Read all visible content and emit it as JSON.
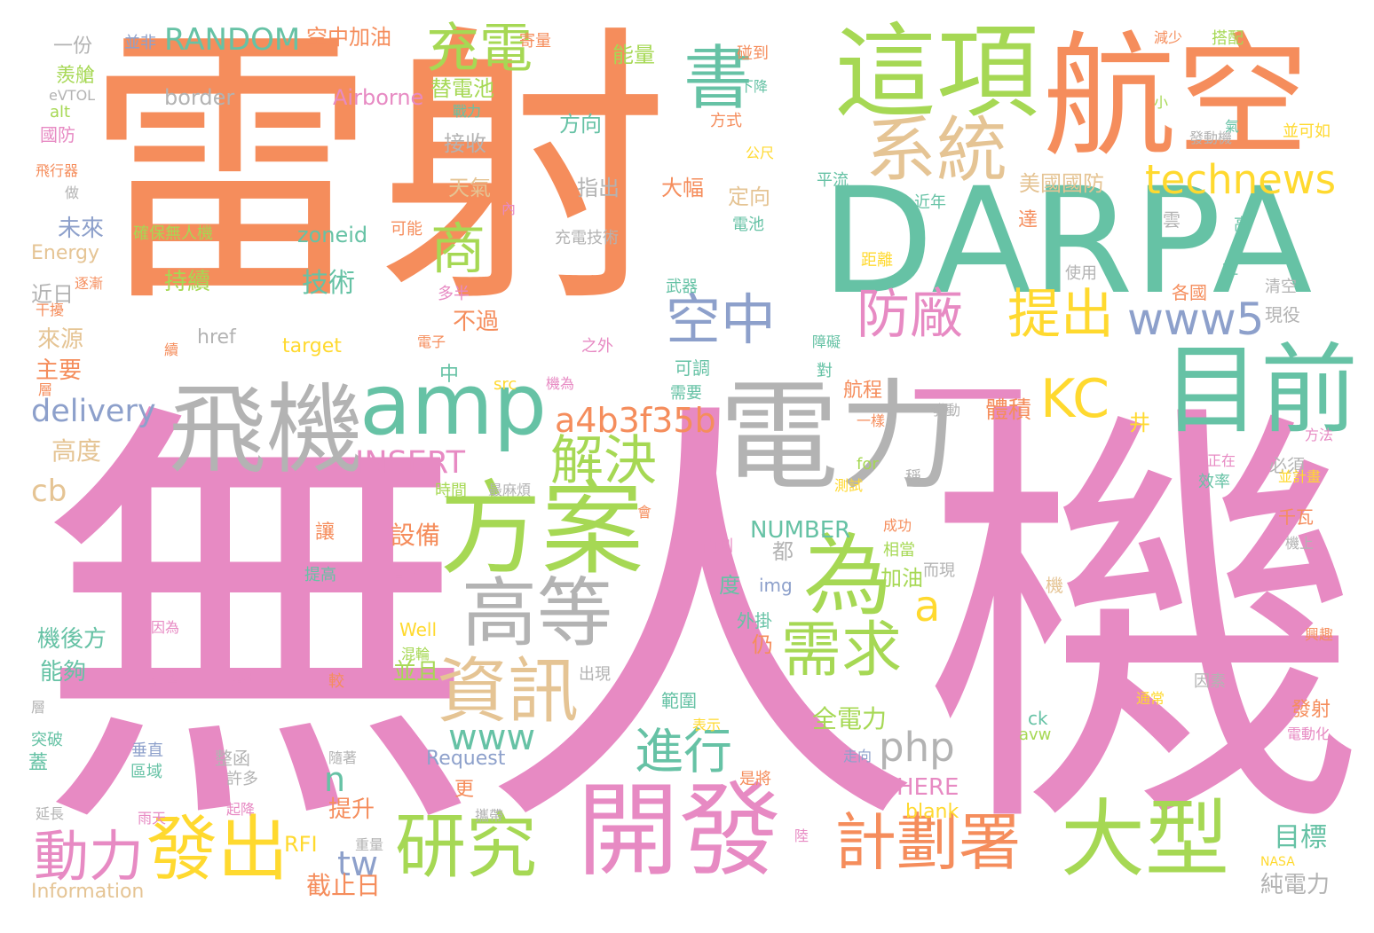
{
  "colors": {
    "background": "#ffffff",
    "orange": "#f58d5c",
    "pink": "#e78ac3",
    "green": "#66c2a5",
    "lime": "#a6d854",
    "gray": "#b3b3b3",
    "blue": "#8da0cb",
    "yellow": "#ffd92f",
    "tan": "#e5c494"
  },
  "words": [
    {
      "text": "雷射",
      "color": "orange"
    },
    {
      "text": "無人機",
      "color": "pink"
    },
    {
      "text": "航空",
      "color": "orange"
    },
    {
      "text": "DARPA",
      "color": "green"
    },
    {
      "text": "這項",
      "color": "lime"
    },
    {
      "text": "一",
      "color": "pink"
    },
    {
      "text": "電力",
      "color": "gray"
    },
    {
      "text": "目前",
      "color": "green"
    },
    {
      "text": "飛機",
      "color": "gray"
    },
    {
      "text": "amp",
      "color": "green"
    },
    {
      "text": "方案",
      "color": "lime"
    },
    {
      "text": "開發",
      "color": "pink"
    },
    {
      "text": "為",
      "color": "lime"
    },
    {
      "text": "系統",
      "color": "tan"
    },
    {
      "text": "書",
      "color": "green"
    },
    {
      "text": "充電",
      "color": "lime"
    },
    {
      "text": "technews",
      "color": "yellow"
    },
    {
      "text": "商",
      "color": "lime"
    },
    {
      "text": "空中",
      "color": "blue"
    },
    {
      "text": "防廠",
      "color": "pink"
    },
    {
      "text": "提出",
      "color": "yellow"
    },
    {
      "text": "www5",
      "color": "blue"
    },
    {
      "text": "KC",
      "color": "yellow"
    },
    {
      "text": "高等",
      "color": "gray"
    },
    {
      "text": "資訊",
      "color": "tan"
    },
    {
      "text": "需求",
      "color": "lime"
    },
    {
      "text": "a",
      "color": "yellow"
    },
    {
      "text": "解決",
      "color": "lime"
    },
    {
      "text": "a4b3f35b",
      "color": "orange"
    },
    {
      "text": "大型",
      "color": "lime"
    },
    {
      "text": "計劃署",
      "color": "orange"
    },
    {
      "text": "研究",
      "color": "lime"
    },
    {
      "text": "發出",
      "color": "yellow"
    },
    {
      "text": "動力",
      "color": "pink"
    },
    {
      "text": "進行",
      "color": "green"
    },
    {
      "text": "www",
      "color": "green"
    },
    {
      "text": "php",
      "color": "gray"
    },
    {
      "text": "delivery",
      "color": "blue"
    },
    {
      "text": "INSERT",
      "color": "pink"
    },
    {
      "text": "RANDOM",
      "color": "green"
    },
    {
      "text": "空中加油",
      "color": "orange"
    },
    {
      "text": "border",
      "color": "gray"
    },
    {
      "text": "Airborne",
      "color": "pink"
    },
    {
      "text": "替電池",
      "color": "lime"
    },
    {
      "text": "接收",
      "color": "gray"
    },
    {
      "text": "天氣",
      "color": "tan"
    },
    {
      "text": "方向",
      "color": "green"
    },
    {
      "text": "指出",
      "color": "gray"
    },
    {
      "text": "大幅",
      "color": "orange"
    },
    {
      "text": "定向",
      "color": "tan"
    },
    {
      "text": "美國國防",
      "color": "tan"
    },
    {
      "text": "未來",
      "color": "blue"
    },
    {
      "text": "zoneid",
      "color": "green"
    },
    {
      "text": "持續",
      "color": "lime"
    },
    {
      "text": "技術",
      "color": "green"
    },
    {
      "text": "近日",
      "color": "gray"
    },
    {
      "text": "來源",
      "color": "tan"
    },
    {
      "text": "主要",
      "color": "orange"
    },
    {
      "text": "不過",
      "color": "orange"
    },
    {
      "text": "href",
      "color": "gray"
    },
    {
      "text": "target",
      "color": "yellow"
    },
    {
      "text": "Energy",
      "color": "tan"
    },
    {
      "text": "高度",
      "color": "tan"
    },
    {
      "text": "cb",
      "color": "tan"
    },
    {
      "text": "n",
      "color": "green"
    },
    {
      "text": "tw",
      "color": "blue"
    },
    {
      "text": "NUMBER",
      "color": "green"
    },
    {
      "text": "設備",
      "color": "orange"
    },
    {
      "text": "都",
      "color": "gray"
    },
    {
      "text": "體積",
      "color": "orange"
    },
    {
      "text": "航程",
      "color": "orange"
    },
    {
      "text": "全電力",
      "color": "lime"
    },
    {
      "text": "目標",
      "color": "green"
    },
    {
      "text": "純電力",
      "color": "gray"
    },
    {
      "text": "截止日",
      "color": "orange"
    },
    {
      "text": "RFI",
      "color": "yellow"
    },
    {
      "text": "Information",
      "color": "tan"
    },
    {
      "text": "Request",
      "color": "blue"
    },
    {
      "text": "HERE",
      "color": "pink"
    },
    {
      "text": "blank",
      "color": "yellow"
    },
    {
      "text": "機後方",
      "color": "green"
    },
    {
      "text": "能夠",
      "color": "green"
    },
    {
      "text": "並且",
      "color": "lime"
    },
    {
      "text": "提升",
      "color": "orange"
    },
    {
      "text": "蓋",
      "color": "green"
    },
    {
      "text": "一份",
      "color": "gray"
    },
    {
      "text": "並非",
      "color": "blue"
    },
    {
      "text": "羨艙",
      "color": "lime"
    },
    {
      "text": "eVTOL",
      "color": "gray"
    },
    {
      "text": "alt",
      "color": "lime"
    },
    {
      "text": "國防",
      "color": "pink"
    },
    {
      "text": "飛行器",
      "color": "orange"
    },
    {
      "text": "做",
      "color": "gray"
    },
    {
      "text": "能量",
      "color": "lime"
    },
    {
      "text": "碰到",
      "color": "orange"
    },
    {
      "text": "下降",
      "color": "green"
    },
    {
      "text": "方式",
      "color": "orange"
    },
    {
      "text": "減少",
      "color": "orange"
    },
    {
      "text": "搭配",
      "color": "lime"
    },
    {
      "text": "發動機",
      "color": "gray"
    },
    {
      "text": "並可如",
      "color": "yellow"
    },
    {
      "text": "氣",
      "color": "green"
    },
    {
      "text": "小",
      "color": "lime"
    },
    {
      "text": "戰力",
      "color": "green"
    },
    {
      "text": "公尺",
      "color": "yellow"
    },
    {
      "text": "平流",
      "color": "green"
    },
    {
      "text": "近年",
      "color": "green"
    },
    {
      "text": "電池",
      "color": "green"
    },
    {
      "text": "達",
      "color": "orange"
    },
    {
      "text": "雲",
      "color": "gray"
    },
    {
      "text": "高",
      "color": "green"
    },
    {
      "text": "充電技術",
      "color": "gray"
    },
    {
      "text": "可能",
      "color": "orange"
    },
    {
      "text": "確保無人機",
      "color": "lime"
    },
    {
      "text": "內",
      "color": "pink"
    },
    {
      "text": "距離",
      "color": "yellow"
    },
    {
      "text": "使用",
      "color": "gray"
    },
    {
      "text": "拉",
      "color": "green"
    },
    {
      "text": "清空",
      "color": "gray"
    },
    {
      "text": "現役",
      "color": "gray"
    },
    {
      "text": "各國",
      "color": "orange"
    },
    {
      "text": "武器",
      "color": "green"
    },
    {
      "text": "障礙",
      "color": "green"
    },
    {
      "text": "對",
      "color": "green"
    },
    {
      "text": "多半",
      "color": "pink"
    },
    {
      "text": "電子",
      "color": "orange"
    },
    {
      "text": "之外",
      "color": "pink"
    },
    {
      "text": "可調",
      "color": "green"
    },
    {
      "text": "需要",
      "color": "green"
    },
    {
      "text": "一樣",
      "color": "orange"
    },
    {
      "text": "發動",
      "color": "gray"
    },
    {
      "text": "井",
      "color": "yellow"
    },
    {
      "text": "方法",
      "color": "pink"
    },
    {
      "text": "必須",
      "color": "gray"
    },
    {
      "text": "正在",
      "color": "pink"
    },
    {
      "text": "效率",
      "color": "green"
    },
    {
      "text": "並計畫",
      "color": "yellow"
    },
    {
      "text": "千瓦",
      "color": "orange"
    },
    {
      "text": "機上",
      "color": "gray"
    },
    {
      "text": "成功",
      "color": "orange"
    },
    {
      "text": "相當",
      "color": "lime"
    },
    {
      "text": "加油",
      "color": "lime"
    },
    {
      "text": "而現",
      "color": "gray"
    },
    {
      "text": "稱",
      "color": "gray"
    },
    {
      "text": "測試",
      "color": "yellow"
    },
    {
      "text": "for",
      "color": "lime"
    },
    {
      "text": "會",
      "color": "orange"
    },
    {
      "text": "時間",
      "color": "lime"
    },
    {
      "text": "最麻煩",
      "color": "gray"
    },
    {
      "text": "偵測",
      "color": "pink"
    },
    {
      "text": "度",
      "color": "green"
    },
    {
      "text": "img",
      "color": "blue"
    },
    {
      "text": "外掛",
      "color": "green"
    },
    {
      "text": "仍",
      "color": "orange"
    },
    {
      "text": "機",
      "color": "tan"
    },
    {
      "text": "Well",
      "color": "yellow"
    },
    {
      "text": "混輪",
      "color": "lime"
    },
    {
      "text": "較",
      "color": "orange"
    },
    {
      "text": "出現",
      "color": "gray"
    },
    {
      "text": "範圍",
      "color": "green"
    },
    {
      "text": "表示",
      "color": "yellow"
    },
    {
      "text": "ck",
      "color": "green"
    },
    {
      "text": "avw",
      "color": "lime"
    },
    {
      "text": "因素",
      "color": "gray"
    },
    {
      "text": "通常",
      "color": "yellow"
    },
    {
      "text": "發射",
      "color": "orange"
    },
    {
      "text": "電動化",
      "color": "pink"
    },
    {
      "text": "興趣",
      "color": "orange"
    },
    {
      "text": "讓",
      "color": "orange"
    },
    {
      "text": "提高",
      "color": "green"
    },
    {
      "text": "有人",
      "color": "pink"
    },
    {
      "text": "因為",
      "color": "pink"
    },
    {
      "text": "這些",
      "color": "pink"
    },
    {
      "text": "提供",
      "color": "pink"
    },
    {
      "text": "層",
      "color": "gray"
    },
    {
      "text": "突破",
      "color": "green"
    },
    {
      "text": "垂直",
      "color": "blue"
    },
    {
      "text": "區域",
      "color": "green"
    },
    {
      "text": "整函",
      "color": "gray"
    },
    {
      "text": "許多",
      "color": "gray"
    },
    {
      "text": "隨著",
      "color": "gray"
    },
    {
      "text": "走向",
      "color": "blue"
    },
    {
      "text": "是將",
      "color": "orange"
    },
    {
      "text": "更",
      "color": "orange"
    },
    {
      "text": "延長",
      "color": "gray"
    },
    {
      "text": "雨天",
      "color": "pink"
    },
    {
      "text": "起降",
      "color": "pink"
    },
    {
      "text": "攜帶",
      "color": "gray"
    },
    {
      "text": "重量",
      "color": "gray"
    },
    {
      "text": "陸",
      "color": "pink"
    },
    {
      "text": "NASA",
      "color": "yellow"
    },
    {
      "text": "src",
      "color": "yellow"
    },
    {
      "text": "機為",
      "color": "pink"
    },
    {
      "text": "中",
      "color": "green"
    },
    {
      "text": "干擾",
      "color": "orange"
    },
    {
      "text": "逐漸",
      "color": "orange"
    },
    {
      "text": "續",
      "color": "orange"
    },
    {
      "text": "層",
      "color": "orange"
    },
    {
      "text": "寄量",
      "color": "orange"
    }
  ]
}
